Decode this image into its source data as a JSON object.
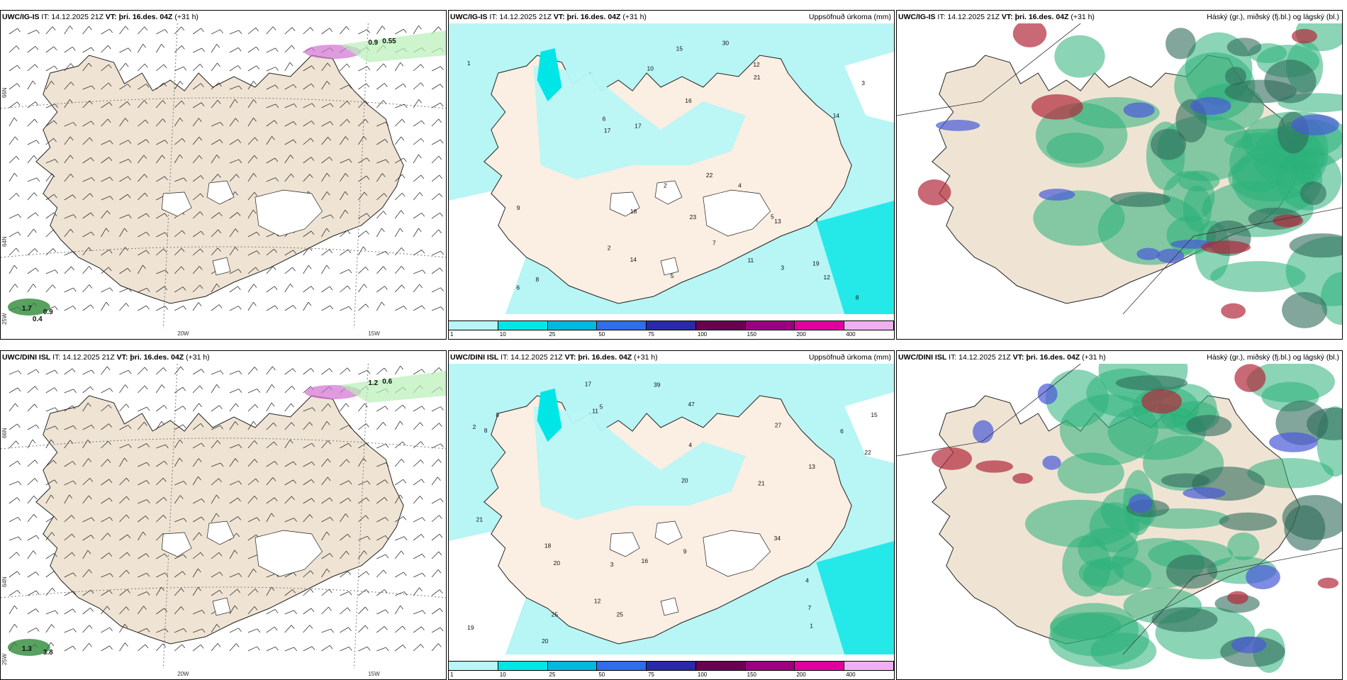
{
  "rows": [
    {
      "panels": [
        {
          "model": "UWC/IG-IS",
          "it": "IT: 14.12.2025 21Z",
          "vt": "VT: þri. 16.des. 04Z",
          "lead": "(+31 h)",
          "right": "",
          "kind": "wind"
        },
        {
          "model": "UWC/IG-IS",
          "it": "IT: 14.12.2025 21Z",
          "vt": "VT: þri. 16.des. 04Z",
          "lead": "(+31 h)",
          "right": "Uppsöfnuð úrkoma (mm)",
          "kind": "precip"
        },
        {
          "model": "UWC/IG-IS",
          "it": "IT: 14.12.2025 21Z",
          "vt": "VT: þri. 16.des. 04Z",
          "lead": "(+31 h)",
          "right": "Háský (gr.), miðský (fj.bl.) og lágský (bl.)",
          "kind": "cloud"
        }
      ]
    },
    {
      "panels": [
        {
          "model": "UWC/DINI ISL",
          "it": "IT: 14.12.2025 21Z",
          "vt": "VT: þri. 16.des. 04Z",
          "lead": "(+31 h)",
          "right": "",
          "kind": "wind"
        },
        {
          "model": "UWC/DINI ISL",
          "it": "IT: 14.12.2025 21Z",
          "vt": "VT: þri. 16.des. 04Z",
          "lead": "(+31 h)",
          "right": "Uppsöfnuð úrkoma (mm)",
          "kind": "precip"
        },
        {
          "model": "UWC/DINI ISL",
          "it": "IT: 14.12.2025 21Z",
          "vt": "VT: þri. 16.des. 04Z",
          "lead": "(+31 h)",
          "right": "Háský (gr.), miðský (fj.bl.) og lágský (bl.)",
          "kind": "cloud"
        }
      ]
    }
  ],
  "axis_labels": {
    "lon": [
      "20W",
      "15W"
    ],
    "lat": [
      "66N",
      "64N"
    ],
    "corner": "25W"
  },
  "colorbar": {
    "labels": [
      "1",
      "10",
      "25",
      "50",
      "75",
      "100",
      "150",
      "200",
      "400"
    ],
    "colors": [
      "#b8f5f5",
      "#00e6e6",
      "#00b8e0",
      "#2f6ee8",
      "#2a2aa8",
      "#6a0050",
      "#9b0080",
      "#e000a0",
      "#f0b0f0"
    ]
  },
  "precip_values_top": [
    "6",
    "4",
    "22",
    "23",
    "10",
    "30",
    "19",
    "12",
    "3",
    "2",
    "8",
    "17",
    "14",
    "15",
    "11",
    "6",
    "5",
    "9",
    "2",
    "3",
    "1",
    "8",
    "5",
    "4",
    "13",
    "21",
    "17",
    "16",
    "14",
    "7",
    "12",
    "18"
  ],
  "precip_values_bottom": [
    "5",
    "4",
    "12",
    "20",
    "39",
    "47",
    "21",
    "18",
    "15",
    "20",
    "25",
    "22",
    "8",
    "11",
    "7",
    "4",
    "3",
    "6",
    "2",
    "1",
    "9",
    "13",
    "8",
    "21",
    "17",
    "16",
    "27",
    "34",
    "25",
    "19",
    "20"
  ],
  "wind_labels_top": [
    "0.9",
    "0.55",
    "1.7",
    "0.9",
    "0.4"
  ],
  "wind_labels_bottom": [
    "1.2",
    "0.6",
    "1.3",
    "3.8"
  ],
  "colors": {
    "land": "#efe4d4",
    "precip_light": "#b8f5f5",
    "precip_mid": "#00e6e6",
    "cloud_green": "#2bb07a",
    "cloud_dark": "#2f6b5a",
    "cloud_blue": "#4a5ad8",
    "cloud_red": "#b22a3a"
  }
}
